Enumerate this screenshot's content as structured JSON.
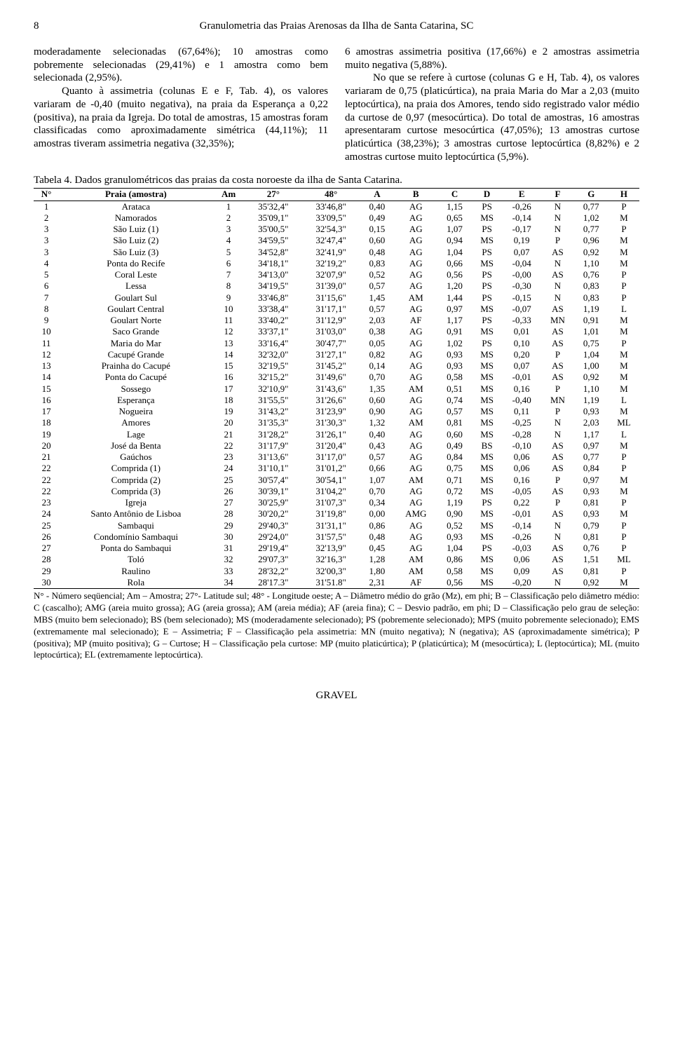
{
  "page_number": "8",
  "running_title": "Granulometria das Praias Arenosas da Ilha de Santa Catarina, SC",
  "left_col_p1": "moderadamente selecionadas (67,64%); 10 amostras como pobremente selecionadas (29,41%) e 1 amostra como bem selecionada (2,95%).",
  "left_col_p2": "Quanto à assimetria (colunas E e F, Tab. 4), os valores variaram de -0,40 (muito negativa), na praia da Esperança a 0,22 (positiva), na praia da Igreja. Do total de amostras, 15 amostras foram classificadas como aproximadamente simétrica (44,11%); 11 amostras tiveram assimetria negativa (32,35%);",
  "right_col_p1": "6 amostras assimetria positiva (17,66%) e 2 amostras assimetria muito negativa (5,88%).",
  "right_col_p2": "No que se refere à curtose (colunas G e H, Tab. 4), os valores variaram de 0,75 (platicúrtica), na praia Maria do Mar a 2,03 (muito leptocúrtica), na praia dos Amores, tendo sido registrado valor médio da curtose de 0,97 (mesocúrtica). Do total de amostras, 16 amostras apresentaram curtose mesocúrtica (47,05%); 13 amostras curtose platicúrtica (38,23%); 3 amostras curtose leptocúrtica (8,82%) e 2 amostras curtose muito leptocúrtica (5,9%).",
  "table_caption": "Tabela 4. Dados granulométricos das praias da costa noroeste da ilha de Santa Catarina.",
  "columns": [
    "N°",
    "Praia (amostra)",
    "Am",
    "27°",
    "48°",
    "A",
    "B",
    "C",
    "D",
    "E",
    "F",
    "G",
    "H"
  ],
  "rows": [
    [
      "1",
      "Arataca",
      "1",
      "35'32,4\"",
      "33'46,8\"",
      "0,40",
      "AG",
      "1,15",
      "PS",
      "-0,26",
      "N",
      "0,77",
      "P"
    ],
    [
      "2",
      "Namorados",
      "2",
      "35'09,1\"",
      "33'09,5\"",
      "0,49",
      "AG",
      "0,65",
      "MS",
      "-0,14",
      "N",
      "1,02",
      "M"
    ],
    [
      "3",
      "São Luiz (1)",
      "3",
      "35'00,5\"",
      "32'54,3\"",
      "0,15",
      "AG",
      "1,07",
      "PS",
      "-0,17",
      "N",
      "0,77",
      "P"
    ],
    [
      "3",
      "São Luiz (2)",
      "4",
      "34'59,5\"",
      "32'47,4\"",
      "0,60",
      "AG",
      "0,94",
      "MS",
      "0,19",
      "P",
      "0,96",
      "M"
    ],
    [
      "3",
      "São Luiz (3)",
      "5",
      "34'52,8\"",
      "32'41,9\"",
      "0,48",
      "AG",
      "1,04",
      "PS",
      "0,07",
      "AS",
      "0,92",
      "M"
    ],
    [
      "4",
      "Ponta do Recife",
      "6",
      "34'18,1\"",
      "32'19,2\"",
      "0,83",
      "AG",
      "0,66",
      "MS",
      "-0,04",
      "N",
      "1,10",
      "M"
    ],
    [
      "5",
      "Coral Leste",
      "7",
      "34'13,0\"",
      "32'07,9\"",
      "0,52",
      "AG",
      "0,56",
      "PS",
      "-0,00",
      "AS",
      "0,76",
      "P"
    ],
    [
      "6",
      "Lessa",
      "8",
      "34'19,5\"",
      "31'39,0\"",
      "0,57",
      "AG",
      "1,20",
      "PS",
      "-0,30",
      "N",
      "0,83",
      "P"
    ],
    [
      "7",
      "Goulart Sul",
      "9",
      "33'46,8\"",
      "31'15,6\"",
      "1,45",
      "AM",
      "1,44",
      "PS",
      "-0,15",
      "N",
      "0,83",
      "P"
    ],
    [
      "8",
      "Goulart Central",
      "10",
      "33'38,4\"",
      "31'17,1\"",
      "0,57",
      "AG",
      "0,97",
      "MS",
      "-0,07",
      "AS",
      "1,19",
      "L"
    ],
    [
      "9",
      "Goulart Norte",
      "11",
      "33'40,2\"",
      "31'12,9\"",
      "2,03",
      "AF",
      "1,17",
      "PS",
      "-0,33",
      "MN",
      "0,91",
      "M"
    ],
    [
      "10",
      "Saco Grande",
      "12",
      "33'37,1\"",
      "31'03,0\"",
      "0,38",
      "AG",
      "0,91",
      "MS",
      "0,01",
      "AS",
      "1,01",
      "M"
    ],
    [
      "11",
      "Maria do Mar",
      "13",
      "33'16,4\"",
      "30'47,7\"",
      "0,05",
      "AG",
      "1,02",
      "PS",
      "0,10",
      "AS",
      "0,75",
      "P"
    ],
    [
      "12",
      "Cacupé Grande",
      "14",
      "32'32,0\"",
      "31'27,1\"",
      "0,82",
      "AG",
      "0,93",
      "MS",
      "0,20",
      "P",
      "1,04",
      "M"
    ],
    [
      "13",
      "Prainha do Cacupé",
      "15",
      "32'19,5\"",
      "31'45,2\"",
      "0,14",
      "AG",
      "0,93",
      "MS",
      "0,07",
      "AS",
      "1,00",
      "M"
    ],
    [
      "14",
      "Ponta do Cacupé",
      "16",
      "32'15,2\"",
      "31'49,6\"",
      "0,70",
      "AG",
      "0,58",
      "MS",
      "-0,01",
      "AS",
      "0,92",
      "M"
    ],
    [
      "15",
      "Sossego",
      "17",
      "32'10,9\"",
      "31'43,6\"",
      "1,35",
      "AM",
      "0,51",
      "MS",
      "0,16",
      "P",
      "1,10",
      "M"
    ],
    [
      "16",
      "Esperança",
      "18",
      "31'55,5\"",
      "31'26,6\"",
      "0,60",
      "AG",
      "0,74",
      "MS",
      "-0,40",
      "MN",
      "1,19",
      "L"
    ],
    [
      "17",
      "Nogueira",
      "19",
      "31'43,2\"",
      "31'23,9\"",
      "0,90",
      "AG",
      "0,57",
      "MS",
      "0,11",
      "P",
      "0,93",
      "M"
    ],
    [
      "18",
      "Amores",
      "20",
      "31'35,3\"",
      "31'30,3\"",
      "1,32",
      "AM",
      "0,81",
      "MS",
      "-0,25",
      "N",
      "2,03",
      "ML"
    ],
    [
      "19",
      "Lage",
      "21",
      "31'28,2\"",
      "31'26,1\"",
      "0,40",
      "AG",
      "0,60",
      "MS",
      "-0,28",
      "N",
      "1,17",
      "L"
    ],
    [
      "20",
      "José da Benta",
      "22",
      "31'17,9\"",
      "31'20,4\"",
      "0,43",
      "AG",
      "0,49",
      "BS",
      "-0,10",
      "AS",
      "0,97",
      "M"
    ],
    [
      "21",
      "Gaúchos",
      "23",
      "31'13,6\"",
      "31'17,0\"",
      "0,57",
      "AG",
      "0,84",
      "MS",
      "0,06",
      "AS",
      "0,77",
      "P"
    ],
    [
      "22",
      "Comprida (1)",
      "24",
      "31'10,1\"",
      "31'01,2\"",
      "0,66",
      "AG",
      "0,75",
      "MS",
      "0,06",
      "AS",
      "0,84",
      "P"
    ],
    [
      "22",
      "Comprida (2)",
      "25",
      "30'57,4\"",
      "30'54,1\"",
      "1,07",
      "AM",
      "0,71",
      "MS",
      "0,16",
      "P",
      "0,97",
      "M"
    ],
    [
      "22",
      "Comprida (3)",
      "26",
      "30'39,1\"",
      "31'04,2\"",
      "0,70",
      "AG",
      "0,72",
      "MS",
      "-0,05",
      "AS",
      "0,93",
      "M"
    ],
    [
      "23",
      "Igreja",
      "27",
      "30'25,9\"",
      "31'07,3\"",
      "0,34",
      "AG",
      "1,19",
      "PS",
      "0,22",
      "P",
      "0,81",
      "P"
    ],
    [
      "24",
      "Santo Antônio de Lisboa",
      "28",
      "30'20,2\"",
      "31'19,8\"",
      "0,00",
      "AMG",
      "0,90",
      "MS",
      "-0,01",
      "AS",
      "0,93",
      "M"
    ],
    [
      "25",
      "Sambaqui",
      "29",
      "29'40,3\"",
      "31'31,1\"",
      "0,86",
      "AG",
      "0,52",
      "MS",
      "-0,14",
      "N",
      "0,79",
      "P"
    ],
    [
      "26",
      "Condomínio Sambaqui",
      "30",
      "29'24,0\"",
      "31'57,5\"",
      "0,48",
      "AG",
      "0,93",
      "MS",
      "-0,26",
      "N",
      "0,81",
      "P"
    ],
    [
      "27",
      "Ponta do Sambaqui",
      "31",
      "29'19,4\"",
      "32'13,9\"",
      "0,45",
      "AG",
      "1,04",
      "PS",
      "-0,03",
      "AS",
      "0,76",
      "P"
    ],
    [
      "28",
      "Toló",
      "32",
      "29'07,3\"",
      "32'16,3\"",
      "1,28",
      "AM",
      "0,86",
      "MS",
      "0,06",
      "AS",
      "1,51",
      "ML"
    ],
    [
      "29",
      "Raulino",
      "33",
      "28'32,2\"",
      "32'00,3\"",
      "1,80",
      "AM",
      "0,58",
      "MS",
      "0,09",
      "AS",
      "0,81",
      "P"
    ],
    [
      "30",
      "Rola",
      "34",
      "28'17.3\"",
      "31'51.8\"",
      "2,31",
      "AF",
      "0,56",
      "MS",
      "-0,20",
      "N",
      "0,92",
      "M"
    ]
  ],
  "legend": "N° - Número seqüencial; Am – Amostra; 27°- Latitude sul; 48° - Longitude oeste; A – Diâmetro médio do grão (Mz), em phi; B – Classificação pelo diâmetro médio: C (cascalho); AMG (areia muito grossa); AG (areia grossa); AM (areia média); AF (areia fina); C – Desvio padrão, em phi; D – Classificação pelo grau de seleção: MBS (muito bem selecionado); BS (bem selecionado); MS (moderadamente selecionado); PS (pobremente selecionado); MPS (muito pobremente selecionado); EMS (extremamente mal selecionado); E – Assimetria; F – Classificação pela assimetria: MN (muito negativa); N (negativa); AS (aproximadamente simétrica); P (positiva); MP (muito positiva); G – Curtose; H – Classificação pela curtose: MP (muito platicúrtica); P (platicúrtica); M (mesocúrtica); L (leptocúrtica); ML (muito leptocúrtica); EL (extremamente leptocúrtica).",
  "footer": "GRAVEL"
}
